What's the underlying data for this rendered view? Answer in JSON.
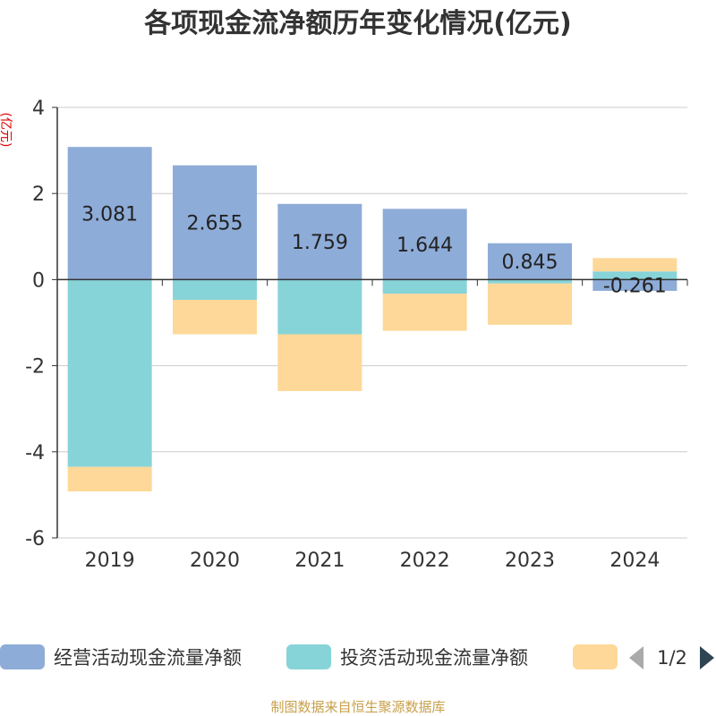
{
  "chart_data": {
    "type": "bar",
    "stacked": true,
    "title": "各项现金流净额历年变化情况(亿元)",
    "ylabel": "(亿元)",
    "ylim": [
      -6,
      4
    ],
    "yticks": [
      -6,
      -4,
      -2,
      0,
      2,
      4
    ],
    "grid": true,
    "legend_position": "bottom",
    "categories": [
      "2019",
      "2020",
      "2021",
      "2022",
      "2023",
      "2024"
    ],
    "series": [
      {
        "name": "经营活动现金流量净额",
        "color": "#8eacd8",
        "values": [
          3.081,
          2.655,
          1.759,
          1.644,
          0.845,
          -0.261
        ],
        "labels": [
          "3.081",
          "2.655",
          "1.759",
          "1.644",
          "0.845",
          "-0.261"
        ]
      },
      {
        "name": "投资活动现金流量净额",
        "color": "#87d4d8",
        "values": [
          -4.35,
          -0.47,
          -1.27,
          -0.33,
          -0.09,
          0.19
        ]
      },
      {
        "name": "",
        "color": "#fdd898",
        "values": [
          -0.57,
          -0.8,
          -1.32,
          -0.86,
          -0.96,
          0.31
        ]
      }
    ]
  },
  "legend": {
    "page": "1/2",
    "prev_icon": "triangle-left-icon",
    "next_icon": "triangle-right-icon"
  },
  "source": "制图数据来自恒生聚源数据库"
}
